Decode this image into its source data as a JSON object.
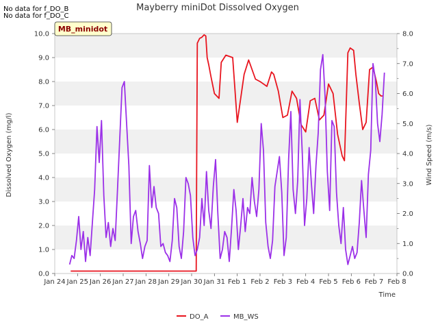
{
  "no_data_notes": [
    "No data for f_DO_B",
    "No data for f_DO_C"
  ],
  "site_badge": "MB_minidot",
  "chart_data": {
    "type": "line",
    "title": "Mayberry miniDot Dissolved Oxygen",
    "xlabel": "Time",
    "ylabel": "Dissolved Oxygen (mg/l)",
    "y2label": "Wind Speed (m/s)",
    "x_ticks": [
      "Jan 24",
      "Jan 25",
      "Jan 26",
      "Jan 27",
      "Jan 28",
      "Jan 29",
      "Jan 30",
      "Jan 31",
      "Feb 1",
      "Feb 2",
      "Feb 3",
      "Feb 4",
      "Feb 5",
      "Feb 6",
      "Feb 7",
      "Feb 8"
    ],
    "xlim": [
      0,
      15
    ],
    "ylim": [
      0,
      10
    ],
    "y_ticks": [
      "0.0",
      "1.0",
      "2.0",
      "3.0",
      "4.0",
      "5.0",
      "6.0",
      "7.0",
      "8.0",
      "9.0",
      "10.0"
    ],
    "y2lim": [
      0,
      8
    ],
    "y2_ticks": [
      "0.0",
      "1.0",
      "2.0",
      "3.0",
      "4.0",
      "5.0",
      "6.0",
      "7.0",
      "8.0"
    ],
    "grid": "horizontal bands",
    "legend_position": "bottom-center",
    "series": [
      {
        "name": "DO_A",
        "axis": "left",
        "color": "#e8141e",
        "x": [
          0.7,
          1.5,
          2.5,
          3.5,
          4.5,
          5.5,
          6.2,
          6.22,
          6.25,
          6.35,
          6.45,
          6.55,
          6.62,
          6.68,
          6.75,
          6.85,
          7.0,
          7.2,
          7.3,
          7.5,
          7.8,
          8.0,
          8.3,
          8.5,
          8.8,
          9.0,
          9.3,
          9.5,
          9.6,
          9.8,
          10.0,
          10.2,
          10.4,
          10.6,
          10.8,
          11.0,
          11.2,
          11.4,
          11.6,
          11.8,
          12.0,
          12.2,
          12.4,
          12.6,
          12.7,
          12.85,
          12.95,
          13.1,
          13.2,
          13.35,
          13.5,
          13.65,
          13.8,
          13.95,
          14.1,
          14.2,
          14.3,
          14.4
        ],
        "y": [
          0.1,
          0.1,
          0.1,
          0.1,
          0.1,
          0.1,
          0.1,
          4.0,
          9.6,
          9.8,
          9.85,
          9.95,
          9.9,
          9.0,
          8.7,
          8.2,
          7.5,
          7.3,
          8.8,
          9.1,
          9.0,
          6.3,
          8.3,
          8.9,
          8.1,
          8.0,
          7.8,
          8.4,
          8.3,
          7.6,
          6.5,
          6.6,
          7.6,
          7.3,
          6.2,
          5.9,
          7.2,
          7.3,
          6.4,
          6.6,
          7.9,
          7.5,
          5.8,
          4.9,
          4.7,
          9.2,
          9.4,
          9.3,
          8.3,
          7.1,
          6.0,
          6.3,
          8.5,
          8.6,
          8.0,
          7.5,
          7.4,
          7.4
        ]
      },
      {
        "name": "MB_WS",
        "axis": "right",
        "color": "#9b30e8",
        "x": [
          0.65,
          0.75,
          0.85,
          0.95,
          1.05,
          1.15,
          1.25,
          1.35,
          1.45,
          1.55,
          1.65,
          1.75,
          1.85,
          1.95,
          2.05,
          2.15,
          2.25,
          2.35,
          2.45,
          2.55,
          2.65,
          2.75,
          2.85,
          2.95,
          3.05,
          3.15,
          3.25,
          3.35,
          3.45,
          3.55,
          3.65,
          3.75,
          3.85,
          3.95,
          4.05,
          4.15,
          4.25,
          4.35,
          4.45,
          4.55,
          4.65,
          4.75,
          4.85,
          4.95,
          5.05,
          5.15,
          5.25,
          5.35,
          5.45,
          5.55,
          5.65,
          5.75,
          5.85,
          5.95,
          6.05,
          6.15,
          6.25,
          6.35,
          6.45,
          6.55,
          6.65,
          6.75,
          6.85,
          6.95,
          7.05,
          7.15,
          7.25,
          7.35,
          7.45,
          7.55,
          7.65,
          7.75,
          7.85,
          7.95,
          8.05,
          8.15,
          8.25,
          8.35,
          8.45,
          8.55,
          8.65,
          8.75,
          8.85,
          8.95,
          9.05,
          9.15,
          9.25,
          9.35,
          9.45,
          9.55,
          9.65,
          9.75,
          9.85,
          9.95,
          10.05,
          10.15,
          10.25,
          10.35,
          10.45,
          10.55,
          10.65,
          10.75,
          10.85,
          10.95,
          11.05,
          11.15,
          11.25,
          11.35,
          11.45,
          11.55,
          11.65,
          11.75,
          11.85,
          11.95,
          12.05,
          12.15,
          12.25,
          12.35,
          12.45,
          12.55,
          12.65,
          12.75,
          12.85,
          12.95,
          13.05,
          13.15,
          13.25,
          13.35,
          13.45,
          13.55,
          13.65,
          13.75,
          13.85,
          13.95,
          14.05,
          14.15,
          14.25,
          14.35,
          14.45
        ],
        "y": [
          0.3,
          0.6,
          0.5,
          1.1,
          1.9,
          0.8,
          1.4,
          0.4,
          1.2,
          0.6,
          1.7,
          2.8,
          4.9,
          3.7,
          5.1,
          2.6,
          1.2,
          1.7,
          0.9,
          1.5,
          1.1,
          2.8,
          4.5,
          6.2,
          6.4,
          5.0,
          3.6,
          1.0,
          1.9,
          2.1,
          1.4,
          1.0,
          0.5,
          0.9,
          1.1,
          3.6,
          2.2,
          2.9,
          2.2,
          2.0,
          0.9,
          1.0,
          0.7,
          0.6,
          0.4,
          1.1,
          2.5,
          2.2,
          0.9,
          0.5,
          1.4,
          3.2,
          3.0,
          2.6,
          1.2,
          0.6,
          0.8,
          1.2,
          2.5,
          1.6,
          3.4,
          2.1,
          1.5,
          2.9,
          3.8,
          2.0,
          0.5,
          0.8,
          1.4,
          1.2,
          0.4,
          1.5,
          2.8,
          2.1,
          0.8,
          1.6,
          2.5,
          1.4,
          2.2,
          2.0,
          3.2,
          2.4,
          1.9,
          2.8,
          5.0,
          4.1,
          1.7,
          0.9,
          0.5,
          1.1,
          2.9,
          3.4,
          3.9,
          2.7,
          0.6,
          1.2,
          3.8,
          5.4,
          2.8,
          2.0,
          3.1,
          5.8,
          4.0,
          1.6,
          2.5,
          4.2,
          3.0,
          2.0,
          3.6,
          4.7,
          6.8,
          7.3,
          5.9,
          3.4,
          2.1,
          5.1,
          4.9,
          2.7,
          1.6,
          1.0,
          2.2,
          0.8,
          0.3,
          0.6,
          0.9,
          0.5,
          0.7,
          1.7,
          3.1,
          2.1,
          1.2,
          3.3,
          4.1,
          7.0,
          6.5,
          5.0,
          4.4,
          5.3,
          6.7
        ]
      }
    ]
  }
}
